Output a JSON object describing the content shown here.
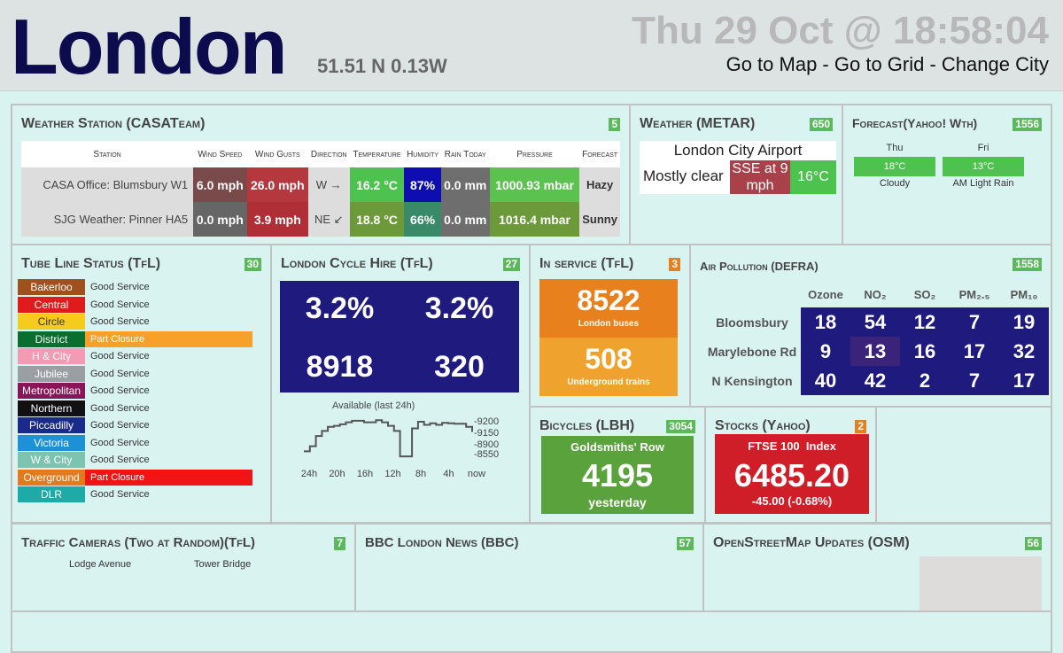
{
  "header": {
    "city": "London",
    "coords": "51.51 N 0.13W",
    "datetime": "Thu 29 Oct @ 18:58:04",
    "links": [
      "Go to Map",
      "Go to Grid",
      "Change City"
    ],
    "sep": " - "
  },
  "weather_station": {
    "title": "Weather Station (CASATeam)",
    "badge": "5",
    "headers": [
      "Station",
      "Wind Speed",
      "Wind Gusts",
      "Direction",
      "Temperature",
      "Humidity",
      "Rain Today",
      "Pressure",
      "Forecast"
    ],
    "rows": [
      {
        "station": "CASA Office: Blumsbury W1",
        "speed": "6.0 mph",
        "gusts": "26.0 mph",
        "dir": "W →",
        "temp": "16.2 °C",
        "hum": "87%",
        "rain": "0.0 mm",
        "press": "1000.93 mbar",
        "fc": "Hazy",
        "colors": [
          "#7a4a4a",
          "#b5383f",
          "#4ec24e",
          "#0d0db0",
          "#6e6e6e",
          "#5cc24f"
        ]
      },
      {
        "station": "SJG Weather: Pinner HA5",
        "speed": "0.0 mph",
        "gusts": "3.9 mph",
        "dir": "NE ↙",
        "temp": "18.8 °C",
        "hum": "66%",
        "rain": "0.0 mm",
        "press": "1016.4 mbar",
        "fc": "Sunny",
        "colors": [
          "#666666",
          "#b02e36",
          "#6c9a3a",
          "#3a8a6a",
          "#6e6e6e",
          "#6c9a3a"
        ]
      }
    ]
  },
  "metar": {
    "title": "Weather (METAR)",
    "badge": "650",
    "station": "London City Airport",
    "cond": "Mostly clear",
    "wind": "SSE at 9 mph",
    "temp": "16°C"
  },
  "forecast": {
    "title": "Forecast(Yahoo! Wth)",
    "badge": "1556",
    "days": [
      {
        "day": "Thu",
        "temp": "18°C",
        "text": "Cloudy"
      },
      {
        "day": "Fri",
        "temp": "13°C",
        "text": "AM Light Rain"
      }
    ]
  },
  "tube": {
    "title": "Tube Line Status (TfL)",
    "badge": "30",
    "lines": [
      {
        "name": "Bakerloo",
        "status": "Good Service",
        "color": "#a0501e"
      },
      {
        "name": "Central",
        "status": "Good Service",
        "color": "#e01b1b"
      },
      {
        "name": "Circle",
        "status": "Good Service",
        "color": "#f5cc1e"
      },
      {
        "name": "District",
        "status": "Part Closure",
        "color": "#0a6e2e",
        "alert": "#f7a12b"
      },
      {
        "name": "H & City",
        "status": "Good Service",
        "color": "#f39ab4"
      },
      {
        "name": "Jubilee",
        "status": "Good Service",
        "color": "#9a9fa3"
      },
      {
        "name": "Metropolitan",
        "status": "Good Service",
        "color": "#8a1458"
      },
      {
        "name": "Northern",
        "status": "Good Service",
        "color": "#111111"
      },
      {
        "name": "Piccadilly",
        "status": "Good Service",
        "color": "#1a2a8a"
      },
      {
        "name": "Victoria",
        "status": "Good Service",
        "color": "#1e90d6"
      },
      {
        "name": "W & City",
        "status": "Good Service",
        "color": "#7cc4b0"
      },
      {
        "name": "Overground",
        "status": "Part Closure",
        "color": "#e37a1e",
        "alert": "#f01414"
      },
      {
        "name": "DLR",
        "status": "Good Service",
        "color": "#1eaaa6"
      }
    ]
  },
  "cycle": {
    "title": "London Cycle Hire (TfL)",
    "badge": "27",
    "values": [
      "3.2%",
      "3.2%",
      "8918",
      "320"
    ],
    "chart_title": "Available (last 24h)",
    "x_labels": [
      "24h",
      "20h",
      "16h",
      "12h",
      "8h",
      "4h",
      "now"
    ],
    "y_labels": [
      "-9200",
      "-9150",
      "-8900",
      "-8550"
    ],
    "series": [
      8600,
      8700,
      8900,
      9000,
      9080,
      9100,
      9130,
      9170,
      9200,
      9200,
      9170,
      9170,
      9210,
      9170,
      9100,
      9000,
      8500,
      8500,
      9050,
      9180,
      9120,
      9150,
      9120,
      9160,
      9150,
      9140,
      9140,
      9080,
      8980
    ]
  },
  "in_service": {
    "title": "In service (TfL)",
    "badge": "3",
    "buses": "8522",
    "buses_label": "London buses",
    "trains": "508",
    "trains_label": "Underground trains"
  },
  "air": {
    "title": "Air Pollution (DEFRA)",
    "badge": "1558",
    "cols": [
      "Ozone",
      "NO₂",
      "SO₂",
      "PM₂.₅",
      "PM₁₀"
    ],
    "rows": [
      {
        "site": "Bloomsbury",
        "v": [
          "18",
          "54",
          "12",
          "7",
          "19"
        ]
      },
      {
        "site": "Marylebone Rd",
        "v": [
          "9",
          "13",
          "16",
          "17",
          "32"
        ]
      },
      {
        "site": "N Kensington",
        "v": [
          "40",
          "42",
          "2",
          "7",
          "17"
        ]
      }
    ]
  },
  "bicycles": {
    "title": "Bicycles (LBH)",
    "badge": "3054",
    "place": "Goldsmiths' Row",
    "value": "4195",
    "when": "yesterday"
  },
  "stocks": {
    "title": "Stocks (Yahoo)",
    "badge": "2",
    "name": "FTSE 100  Index",
    "value": "6485.20",
    "change": "-45.00 (-0.68%)"
  },
  "cameras": {
    "title": "Traffic Cameras (Two at Random)(TfL)",
    "badge": "7",
    "cams": [
      "Lodge Avenue",
      "Tower Bridge"
    ]
  },
  "news": {
    "title": "BBC London News (BBC)",
    "badge": "57"
  },
  "osm": {
    "title": "OpenStreetMap Updates (OSM)",
    "badge": "56"
  }
}
